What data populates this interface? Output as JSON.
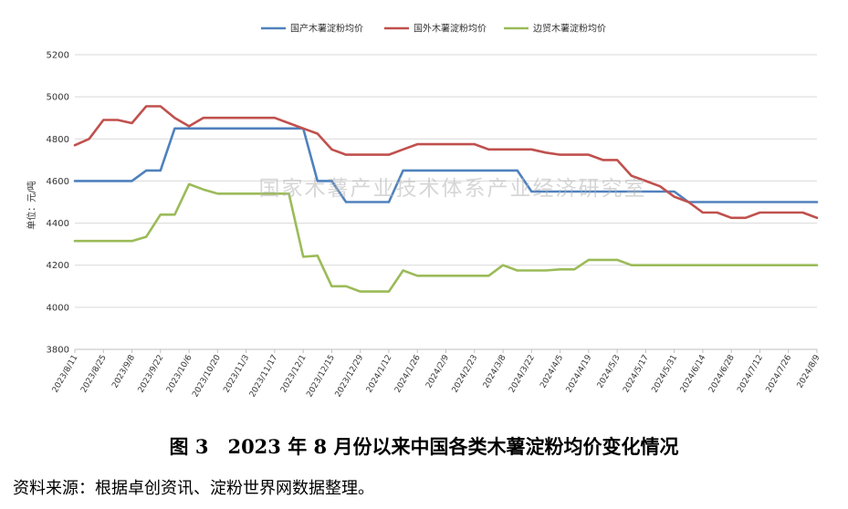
{
  "chart_data": {
    "type": "line",
    "title": "",
    "xlabel": "",
    "ylabel": "单位：元/吨",
    "ylim": [
      3800,
      5200
    ],
    "yticks": [
      3800,
      4000,
      4200,
      4400,
      4600,
      4800,
      5000,
      5200
    ],
    "grid": "horizontal",
    "legend_position": "top",
    "tick_labels": [
      "2023/8/11",
      "2023/8/25",
      "2023/9/8",
      "2023/9/22",
      "2023/10/6",
      "2023/10/20",
      "2023/11/3",
      "2023/11/17",
      "2023/12/1",
      "2023/12/15",
      "2023/12/29",
      "2024/1/12",
      "2024/1/26",
      "2024/2/9",
      "2024/2/23",
      "2024/3/8",
      "2024/3/22",
      "2024/4/5",
      "2024/4/19",
      "2024/5/3",
      "2024/5/17",
      "2024/5/31",
      "2024/6/14",
      "2024/6/28",
      "2024/7/12",
      "2024/7/26",
      "2024/8/9"
    ],
    "x": [
      "2023/8/11",
      "2023/8/18",
      "2023/8/25",
      "2023/9/1",
      "2023/9/8",
      "2023/9/15",
      "2023/9/22",
      "2023/9/29",
      "2023/10/6",
      "2023/10/13",
      "2023/10/20",
      "2023/10/27",
      "2023/11/3",
      "2023/11/10",
      "2023/11/17",
      "2023/11/24",
      "2023/12/1",
      "2023/12/8",
      "2023/12/15",
      "2023/12/22",
      "2023/12/29",
      "2024/1/5",
      "2024/1/12",
      "2024/1/19",
      "2024/1/26",
      "2024/2/2",
      "2024/2/9",
      "2024/2/16",
      "2024/2/23",
      "2024/3/1",
      "2024/3/8",
      "2024/3/15",
      "2024/3/22",
      "2024/3/29",
      "2024/4/5",
      "2024/4/12",
      "2024/4/19",
      "2024/4/26",
      "2024/5/3",
      "2024/5/10",
      "2024/5/17",
      "2024/5/24",
      "2024/5/31",
      "2024/6/7",
      "2024/6/14",
      "2024/6/21",
      "2024/6/28",
      "2024/7/5",
      "2024/7/12",
      "2024/7/19",
      "2024/7/26",
      "2024/8/2",
      "2024/8/9"
    ],
    "series": [
      {
        "name": "国产木薯淀粉均价",
        "color": "#4f81bd",
        "values": [
          4600,
          4600,
          4600,
          4600,
          4600,
          4650,
          4650,
          4850,
          4850,
          4850,
          4850,
          4850,
          4850,
          4850,
          4850,
          4850,
          4850,
          4600,
          4600,
          4500,
          4500,
          4500,
          4500,
          4650,
          4650,
          4650,
          4650,
          4650,
          4650,
          4650,
          4650,
          4650,
          4550,
          4550,
          4550,
          4550,
          4550,
          4550,
          4550,
          4550,
          4550,
          4550,
          4550,
          4500,
          4500,
          4500,
          4500,
          4500,
          4500,
          4500,
          4500,
          4500,
          4500
        ]
      },
      {
        "name": "国外木薯淀粉均价",
        "color": "#c0504d",
        "values": [
          4770,
          4800,
          4890,
          4890,
          4875,
          4955,
          4955,
          4900,
          4860,
          4900,
          4900,
          4900,
          4900,
          4900,
          4900,
          4875,
          4850,
          4825,
          4750,
          4725,
          4725,
          4725,
          4725,
          4750,
          4775,
          4775,
          4775,
          4775,
          4775,
          4750,
          4750,
          4750,
          4750,
          4735,
          4725,
          4725,
          4725,
          4700,
          4700,
          4625,
          4600,
          4575,
          4525,
          4500,
          4450,
          4450,
          4425,
          4425,
          4450,
          4450,
          4450,
          4450,
          4425
        ]
      },
      {
        "name": "边贸木薯淀粉均价",
        "color": "#9bbb59",
        "values": [
          4315,
          4315,
          4315,
          4315,
          4315,
          4335,
          4440,
          4440,
          4585,
          4560,
          4540,
          4540,
          4540,
          4540,
          4540,
          4540,
          4240,
          4245,
          4100,
          4100,
          4075,
          4075,
          4075,
          4175,
          4150,
          4150,
          4150,
          4150,
          4150,
          4150,
          4200,
          4175,
          4175,
          4175,
          4180,
          4180,
          4225,
          4225,
          4225,
          4200,
          4200,
          4200,
          4200,
          4200,
          4200,
          4200,
          4200,
          4200,
          4200,
          4200,
          4200,
          4200,
          4200
        ]
      }
    ]
  },
  "watermark": "国家木薯产业技术体系产业经济研究室",
  "caption": "图 3　2023 年 8 月份以来中国各类木薯淀粉均价变化情况",
  "source": "资料来源：根据卓创资讯、淀粉世界网数据整理。"
}
